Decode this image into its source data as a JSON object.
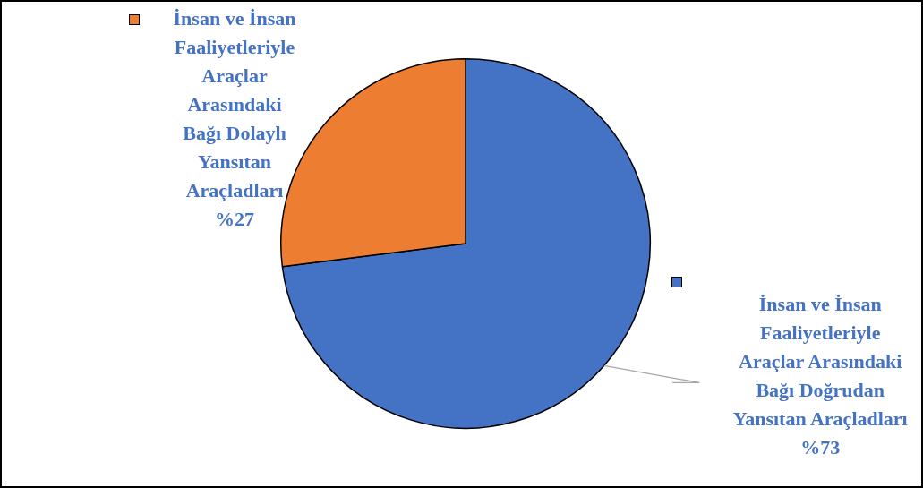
{
  "chart_data": {
    "type": "pie",
    "categories": [
      "İnsan ve İnsan Faaliyetleriyle Araçlar Arasındaki Bağı Doğrudan Yansıtan Araçladları",
      "İnsan ve İnsan Faaliyetleriyle Araçlar Arasındaki Bağı Dolaylı Yansıtan Araçladları"
    ],
    "values": [
      73,
      27
    ],
    "colors": [
      "#4472c4",
      "#ed7d31"
    ],
    "value_labels": [
      "%73",
      "%27"
    ]
  }
}
